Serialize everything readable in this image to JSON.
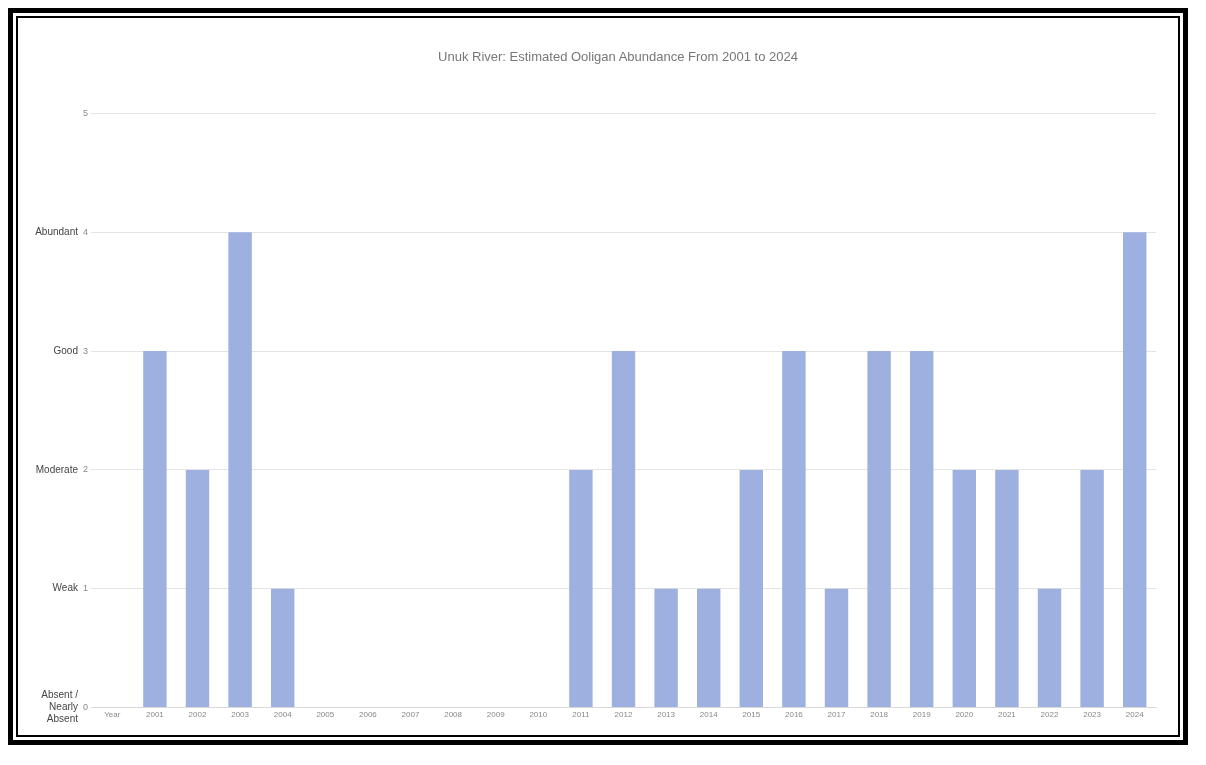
{
  "chart_data": {
    "type": "bar",
    "title": "Unuk River: Estimated Ooligan Abundance From 2001 to 2024",
    "categories": [
      "Year",
      "2001",
      "2002",
      "2003",
      "2004",
      "2005",
      "2006",
      "2007",
      "2008",
      "2009",
      "2010",
      "2011",
      "2012",
      "2013",
      "2014",
      "2015",
      "2016",
      "2017",
      "2018",
      "2019",
      "2020",
      "2021",
      "2022",
      "2023",
      "2024"
    ],
    "values": [
      null,
      3,
      2,
      4,
      1,
      0,
      0,
      0,
      0,
      0,
      0,
      2,
      3,
      1,
      1,
      2,
      3,
      1,
      3,
      3,
      2,
      2,
      1,
      2,
      4
    ],
    "color": "#9db0e0",
    "ylim": [
      0,
      5
    ],
    "yticks": [
      0,
      1,
      2,
      3,
      4,
      5
    ],
    "grid": "y",
    "legend": false,
    "annotations": [
      "Absent / Nearly Absent",
      "Weak",
      "Moderate",
      "Good",
      "Abundant"
    ]
  }
}
